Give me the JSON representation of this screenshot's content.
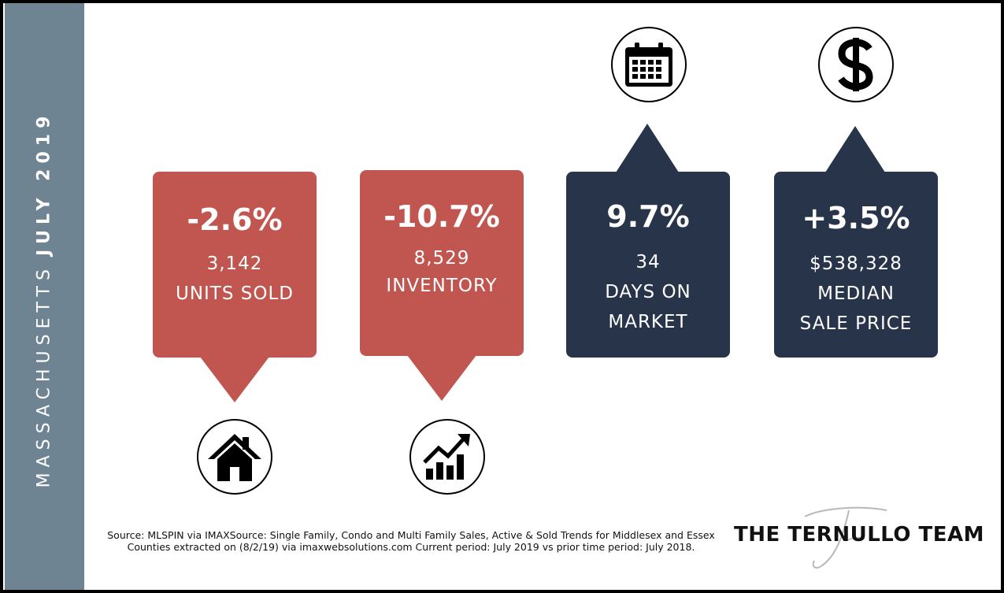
{
  "sidebar": {
    "region": "MASSACHUSETTS",
    "period": "JULY 2019"
  },
  "stats": [
    {
      "pct": "-2.6%",
      "value": "3,142",
      "label_lines": [
        "UNITS SOLD"
      ],
      "color": "#c0564f",
      "icon": "house-icon"
    },
    {
      "pct": "-10.7%",
      "value": "8,529",
      "label_lines": [
        "INVENTORY"
      ],
      "color": "#c0564f",
      "icon": "chart-growth-icon"
    },
    {
      "pct": "9.7%",
      "value": "34",
      "label_lines": [
        "DAYS ON",
        "MARKET"
      ],
      "color": "#283449",
      "icon": "calendar-icon"
    },
    {
      "pct": "+3.5%",
      "value": "$538,328",
      "label_lines": [
        "MEDIAN",
        "SALE PRICE"
      ],
      "color": "#283449",
      "icon": "dollar-icon"
    }
  ],
  "source_text": "Source: MLSPIN via IMAXSource: Single Family, Condo and Multi Family Sales, Active & Sold Trends for Middlesex and Essex Counties extracted on (8/2/19) via imaxwebsolutions.com Current period: July 2019 vs prior time period: July 2018.",
  "logo": {
    "text": "THE TERNULLO TEAM"
  },
  "colors": {
    "sidebar": "#6f8492",
    "red": "#c0564f",
    "navy": "#283449"
  }
}
